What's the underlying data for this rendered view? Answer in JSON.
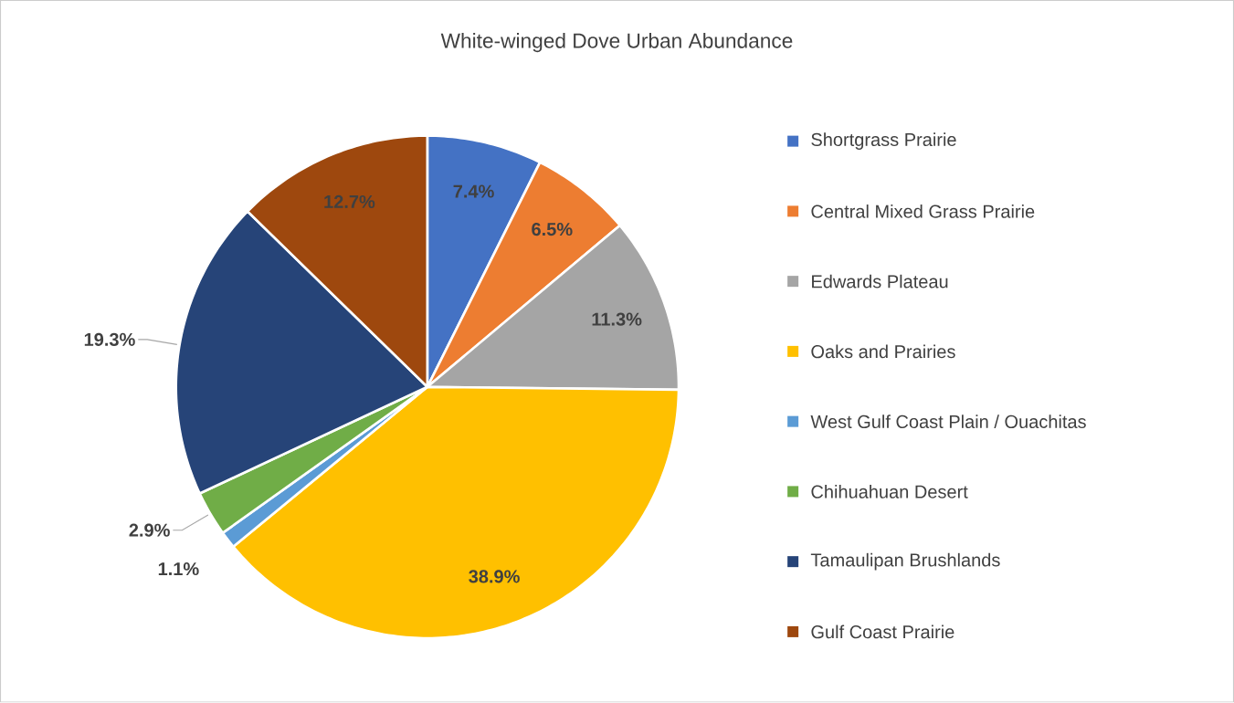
{
  "chart_data": {
    "type": "pie",
    "title": "White-winged Dove Urban Abundance",
    "categories": [
      "Shortgrass Prairie",
      "Central Mixed Grass Prairie",
      "Edwards Plateau",
      "Oaks and Prairies",
      "West Gulf Coast Plain / Ouachitas",
      "Chihuahuan Desert",
      "Tamaulipan Brushlands",
      "Gulf Coast Prairie"
    ],
    "values": [
      7.4,
      6.5,
      11.3,
      38.9,
      1.1,
      2.9,
      19.3,
      12.7
    ],
    "value_labels": [
      "7.4%",
      "6.5%",
      "11.3%",
      "38.9%",
      "1.1%",
      "2.9%",
      "19.3%",
      "12.7%"
    ],
    "colors": [
      "#4472c4",
      "#ed7d31",
      "#a5a5a5",
      "#ffc000",
      "#5b9bd5",
      "#70ad47",
      "#264478",
      "#9e480e"
    ],
    "legend": "right"
  }
}
